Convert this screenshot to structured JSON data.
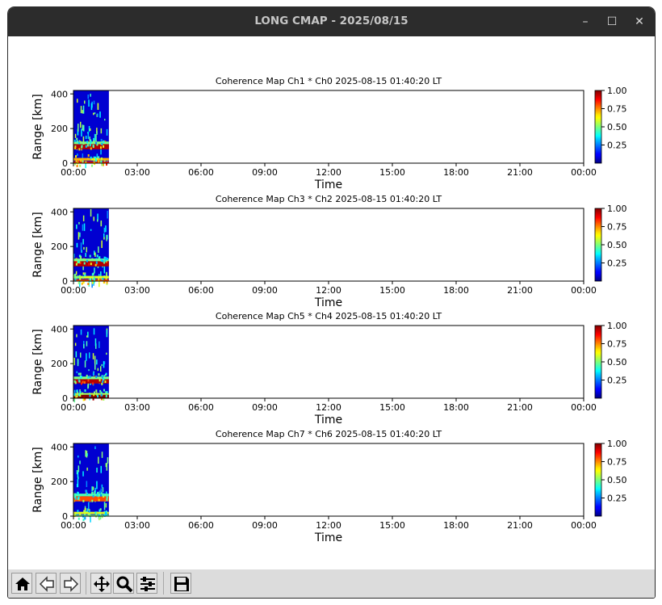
{
  "window": {
    "title": "LONG CMAP - 2025/08/15",
    "minimize_glyph": "–",
    "maximize_glyph": "☐",
    "close_glyph": "✕"
  },
  "toolbar": {
    "buttons": [
      {
        "name": "home-button",
        "icon": "home-icon"
      },
      {
        "name": "back-button",
        "icon": "arrow-left-icon"
      },
      {
        "name": "forward-button",
        "icon": "arrow-right-icon"
      },
      {
        "name": "pan-button",
        "icon": "move-icon"
      },
      {
        "name": "zoom-button",
        "icon": "magnifier-icon"
      },
      {
        "name": "configure-button",
        "icon": "sliders-icon"
      },
      {
        "name": "save-button",
        "icon": "floppy-disk-icon"
      }
    ]
  },
  "colors": {
    "colormap": "jet",
    "background": "#dcdcdc",
    "titlebar": "#2c2c2c"
  },
  "chart_data": [
    {
      "type": "heatmap",
      "title": "Coherence Map Ch1 * Ch0 2025-08-15 01:40:20 LT",
      "xlabel": "Time",
      "ylabel": "Range [km]",
      "xticks": [
        "00:00",
        "03:00",
        "06:00",
        "09:00",
        "12:00",
        "15:00",
        "18:00",
        "21:00",
        "00:00"
      ],
      "yticks": [
        0,
        200,
        400
      ],
      "ylim": [
        0,
        420
      ],
      "data_extent_time": [
        "00:00",
        "01:40"
      ],
      "colorbar": {
        "ticks": [
          0.25,
          0.5,
          0.75,
          1.0
        ],
        "tick_labels": [
          "0.25",
          "0.50",
          "0.75",
          "1.00"
        ],
        "range": [
          0,
          1
        ]
      },
      "features": [
        {
          "range_km": [
            0,
            10
          ],
          "value": 0.85
        },
        {
          "range_km": [
            15,
            30
          ],
          "value": 0.7
        },
        {
          "range_km": [
            80,
            110
          ],
          "value": 0.95
        },
        {
          "range_km": [
            110,
            125
          ],
          "value": 0.5
        }
      ]
    },
    {
      "type": "heatmap",
      "title": "Coherence Map Ch3 * Ch2 2025-08-15 01:40:20 LT",
      "xlabel": "Time",
      "ylabel": "Range [km]",
      "xticks": [
        "00:00",
        "03:00",
        "06:00",
        "09:00",
        "12:00",
        "15:00",
        "18:00",
        "21:00",
        "00:00"
      ],
      "yticks": [
        0,
        200,
        400
      ],
      "ylim": [
        0,
        420
      ],
      "data_extent_time": [
        "00:00",
        "01:40"
      ],
      "colorbar": {
        "ticks": [
          0.25,
          0.5,
          0.75,
          1.0
        ],
        "tick_labels": [
          "0.25",
          "0.50",
          "0.75",
          "1.00"
        ],
        "range": [
          0,
          1
        ]
      },
      "features": [
        {
          "range_km": [
            0,
            10
          ],
          "value": 0.8
        },
        {
          "range_km": [
            15,
            30
          ],
          "value": 0.6
        },
        {
          "range_km": [
            85,
            115
          ],
          "value": 0.95
        },
        {
          "range_km": [
            115,
            130
          ],
          "value": 0.5
        }
      ]
    },
    {
      "type": "heatmap",
      "title": "Coherence Map Ch5 * Ch4 2025-08-15 01:40:20 LT",
      "xlabel": "Time",
      "ylabel": "Range [km]",
      "xticks": [
        "00:00",
        "03:00",
        "06:00",
        "09:00",
        "12:00",
        "15:00",
        "18:00",
        "21:00",
        "00:00"
      ],
      "yticks": [
        0,
        200,
        400
      ],
      "ylim": [
        0,
        420
      ],
      "data_extent_time": [
        "00:00",
        "01:40"
      ],
      "colorbar": {
        "ticks": [
          0.25,
          0.5,
          0.75,
          1.0
        ],
        "tick_labels": [
          "0.25",
          "0.50",
          "0.75",
          "1.00"
        ],
        "range": [
          0,
          1
        ]
      },
      "features": [
        {
          "range_km": [
            0,
            20
          ],
          "value": 1.0
        },
        {
          "range_km": [
            20,
            30
          ],
          "value": 0.55
        },
        {
          "range_km": [
            85,
            110
          ],
          "value": 0.95
        },
        {
          "range_km": [
            110,
            125
          ],
          "value": 0.5
        }
      ]
    },
    {
      "type": "heatmap",
      "title": "Coherence Map Ch7 * Ch6 2025-08-15 01:40:20 LT",
      "xlabel": "Time",
      "ylabel": "Range [km]",
      "xticks": [
        "00:00",
        "03:00",
        "06:00",
        "09:00",
        "12:00",
        "15:00",
        "18:00",
        "21:00",
        "00:00"
      ],
      "yticks": [
        0,
        200,
        400
      ],
      "ylim": [
        0,
        420
      ],
      "data_extent_time": [
        "00:00",
        "01:40"
      ],
      "colorbar": {
        "ticks": [
          0.25,
          0.5,
          0.75,
          1.0
        ],
        "tick_labels": [
          "0.25",
          "0.50",
          "0.75",
          "1.00"
        ],
        "range": [
          0,
          1
        ]
      },
      "features": [
        {
          "range_km": [
            0,
            8
          ],
          "value": 0.5
        },
        {
          "range_km": [
            12,
            25
          ],
          "value": 0.6
        },
        {
          "range_km": [
            85,
            115
          ],
          "value": 0.8
        },
        {
          "range_km": [
            115,
            130
          ],
          "value": 0.45
        }
      ]
    }
  ]
}
